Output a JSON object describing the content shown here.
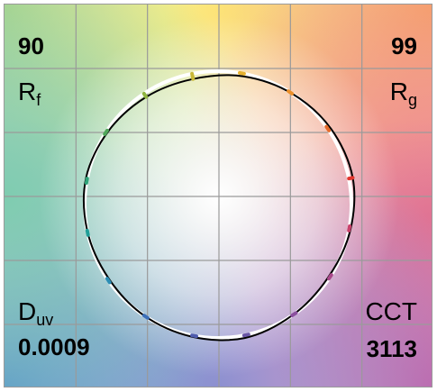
{
  "metrics": {
    "rf": {
      "value": "90",
      "symbol": "R",
      "subscript": "f"
    },
    "rg": {
      "value": "99",
      "symbol": "R",
      "subscript": "g"
    },
    "duv": {
      "value": "0.0009",
      "symbol": "D",
      "subscript": "uv"
    },
    "cct": {
      "value": "3113",
      "symbol": "CCT"
    }
  },
  "colors": {
    "corner_top_left": "#9fd08a",
    "corner_top_center": "#fff27a",
    "corner_top_right": "#f7a868",
    "corner_right_mid": "#f07c88",
    "corner_bottom_right": "#c463a8",
    "corner_bottom_center": "#9a8fd0",
    "corner_bottom_left": "#5b93cf",
    "corner_left_mid": "#7fccb0",
    "grid": "#9a9a9a",
    "reference_circle": "#ffffff",
    "test_contour": "#000000"
  },
  "chart_data": {
    "type": "color-vector-graphic",
    "grid": true,
    "hue_bins": 16,
    "reference_radius": 1.0,
    "test_radii": [
      1.03,
      1.02,
      1.0,
      0.98,
      0.96,
      0.97,
      0.99,
      1.01,
      1.0,
      0.99,
      1.0,
      1.01,
      1.02,
      1.0,
      0.99,
      1.01
    ],
    "hue_colors": [
      "#e2342c",
      "#e56a2a",
      "#ea8f2b",
      "#e6b12e",
      "#c9b836",
      "#8fb540",
      "#4fa65a",
      "#2ea479",
      "#1f9e97",
      "#2b8db4",
      "#3c6fb8",
      "#4f5cae",
      "#6a56a6",
      "#8a4f9e",
      "#a9488a",
      "#c8406a"
    ]
  }
}
